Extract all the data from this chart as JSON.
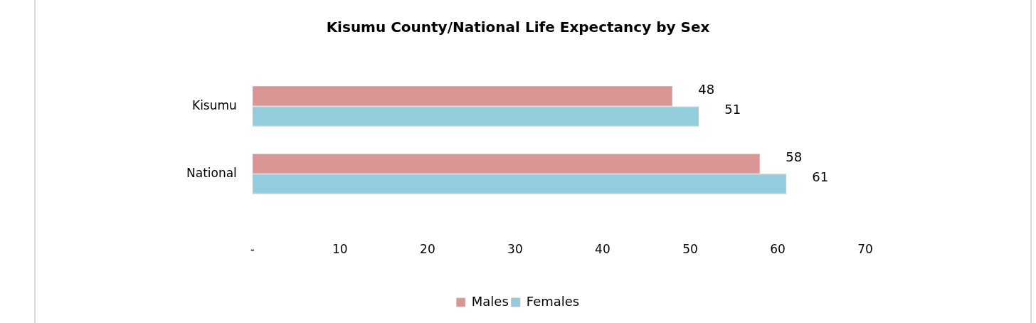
{
  "chart_data": {
    "type": "bar",
    "orientation": "horizontal",
    "title": "Kisumu County/National Life Expectancy by Sex",
    "categories": [
      "Kisumu",
      "National"
    ],
    "series": [
      {
        "name": "Males",
        "color": "#d99694",
        "values": [
          48,
          58
        ]
      },
      {
        "name": "Females",
        "color": "#93cddd",
        "values": [
          51,
          61
        ]
      }
    ],
    "xlim": [
      0,
      70
    ],
    "xticks": [
      {
        "value": 0,
        "label": "-"
      },
      10,
      20,
      30,
      40,
      50,
      60,
      70
    ],
    "grid": false,
    "legend": "bottom",
    "data_labels": true
  }
}
